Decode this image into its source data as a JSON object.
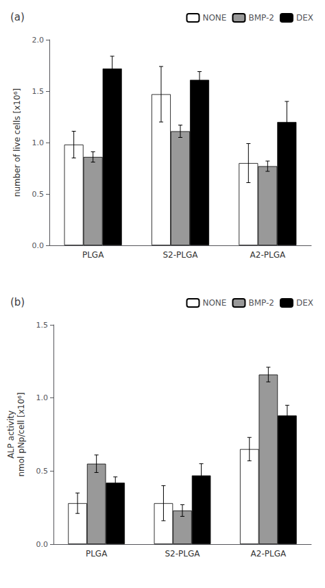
{
  "chart_data": [
    {
      "type": "bar",
      "title": "(a)",
      "categories": [
        "PLGA",
        "S2-PLGA",
        "A2-PLGA"
      ],
      "series": [
        {
          "name": "NONE",
          "color": "white",
          "values": [
            0.98,
            1.47,
            0.8
          ],
          "errors": [
            0.13,
            0.27,
            0.19
          ]
        },
        {
          "name": "BMP-2",
          "color": "#999999",
          "values": [
            0.86,
            1.11,
            0.77
          ],
          "errors": [
            0.05,
            0.06,
            0.05
          ]
        },
        {
          "name": "DEX",
          "color": "black",
          "values": [
            1.72,
            1.61,
            1.2
          ],
          "errors": [
            0.12,
            0.08,
            0.2
          ]
        }
      ],
      "ylabel": "number of live cells [x10⁶]",
      "ylim": [
        0.0,
        2.0
      ],
      "yticks": [
        {
          "value": 0.0,
          "label": "0.0"
        },
        0.5,
        {
          "value": 1.0,
          "label": "1.0"
        },
        1.5,
        {
          "value": 2.0,
          "label": "2.0"
        }
      ],
      "grid": false,
      "legend": "upper right"
    },
    {
      "type": "bar",
      "title": "(b)",
      "categories": [
        "PLGA",
        "S2-PLGA",
        "A2-PLGA"
      ],
      "series": [
        {
          "name": "NONE",
          "color": "white",
          "values": [
            0.28,
            0.28,
            0.65
          ],
          "errors": [
            0.07,
            0.12,
            0.08
          ]
        },
        {
          "name": "BMP-2",
          "color": "#999999",
          "values": [
            0.55,
            0.23,
            1.16
          ],
          "errors": [
            0.06,
            0.04,
            0.05
          ]
        },
        {
          "name": "DEX",
          "color": "black",
          "values": [
            0.42,
            0.47,
            0.88
          ],
          "errors": [
            0.04,
            0.08,
            0.07
          ]
        }
      ],
      "ylabel": "ALP activity\nnmol pNp/cell [x10⁶]",
      "ylim": [
        0.0,
        1.5
      ],
      "yticks": [
        {
          "value": 0.0,
          "label": "0.0"
        },
        0.5,
        {
          "value": 1.0,
          "label": "1.0"
        },
        1.5
      ],
      "grid": false,
      "legend": "upper right"
    }
  ]
}
